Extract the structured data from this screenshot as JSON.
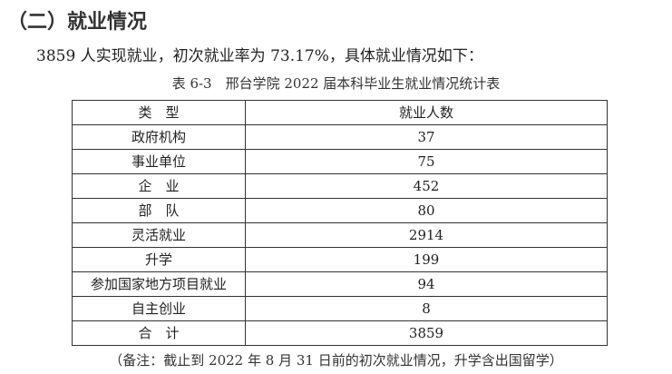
{
  "heading": "（二）就业情况",
  "paragraph": "3859 人实现就业，初次就业率为 73.17%，具体就业情况如下：",
  "caption": "表 6-3　邢台学院 2022 届本科毕业生就业情况统计表",
  "table": {
    "headers": [
      "类　型",
      "就业人数"
    ],
    "rows": [
      [
        "政府机构",
        "37"
      ],
      [
        "事业单位",
        "75"
      ],
      [
        "企　业",
        "452"
      ],
      [
        "部　队",
        "80"
      ],
      [
        "灵活就业",
        "2914"
      ],
      [
        "升学",
        "199"
      ],
      [
        "参加国家地方项目就业",
        "94"
      ],
      [
        "自主创业",
        "8"
      ],
      [
        "合　计",
        "3859"
      ]
    ]
  },
  "note": "（备注：截止到 2022 年 8 月 31 日前的初次就业情况，升学含出国留学）"
}
